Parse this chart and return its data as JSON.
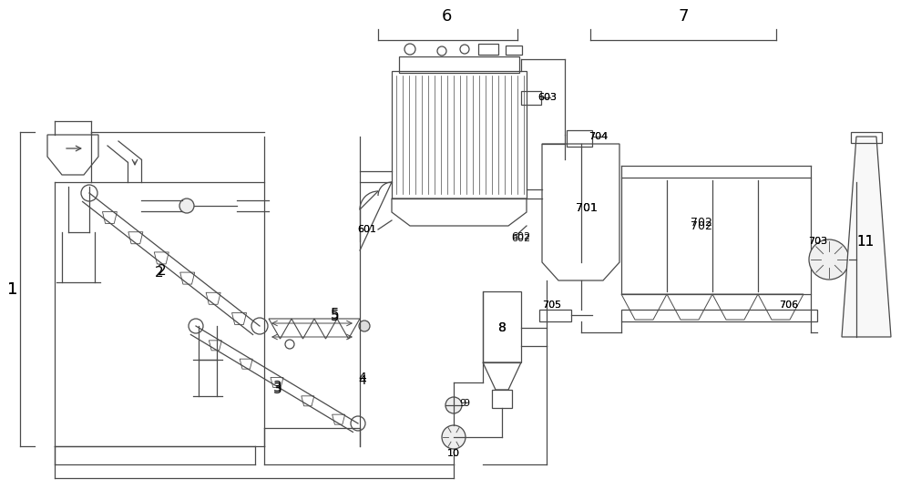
{
  "bg_color": "#ffffff",
  "line_color": "#4a4a4a",
  "line_width": 0.9
}
